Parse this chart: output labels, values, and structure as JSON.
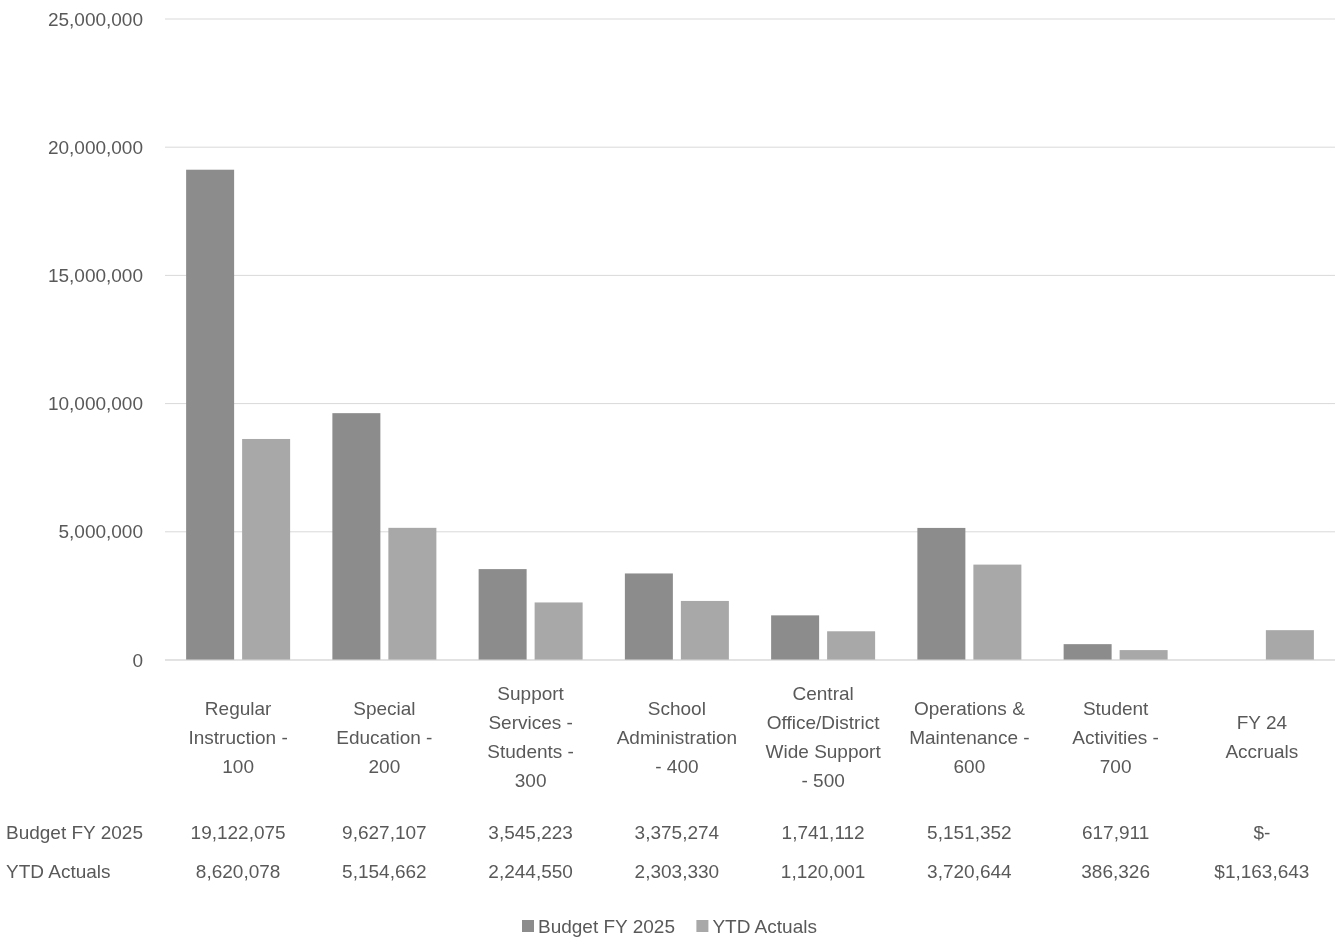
{
  "chart_data": {
    "type": "bar",
    "categories": [
      "Regular Instruction - 100",
      "Special Education - 200",
      "Support Services - Students - 300",
      "School Administration - 400",
      "Central Office/District Wide Support - 500",
      "Operations & Maintenance - 600",
      "Student Activities - 700",
      "FY 24 Accruals"
    ],
    "series": [
      {
        "name": "Budget FY 2025",
        "color": "#8c8c8c",
        "values": [
          19122075,
          9627107,
          3545223,
          3375274,
          1741112,
          5151352,
          617911,
          0
        ],
        "value_labels": [
          "19,122,075",
          "9,627,107",
          "3,545,223",
          "3,375,274",
          "1,741,112",
          "5,151,352",
          "617,911",
          "$-"
        ]
      },
      {
        "name": "YTD Actuals",
        "color": "#a8a8a8",
        "values": [
          8620078,
          5154662,
          2244550,
          2303330,
          1120001,
          3720644,
          386326,
          1163643
        ],
        "value_labels": [
          "8,620,078",
          "5,154,662",
          "2,244,550",
          "2,303,330",
          "1,120,001",
          "3,720,644",
          "386,326",
          "$1,163,643"
        ]
      }
    ],
    "ylim": [
      0,
      25000000
    ],
    "yticks": [
      0,
      {
        "value": 5000000,
        "label": "5,000,000"
      },
      {
        "value": 10000000,
        "label": "10,000,000"
      },
      {
        "value": 15000000,
        "label": "15,000,000"
      },
      {
        "value": 20000000,
        "label": "20,000,000"
      },
      {
        "value": 25000000,
        "label": "25,000,000"
      }
    ],
    "grid": "y",
    "legend": "bottom"
  }
}
